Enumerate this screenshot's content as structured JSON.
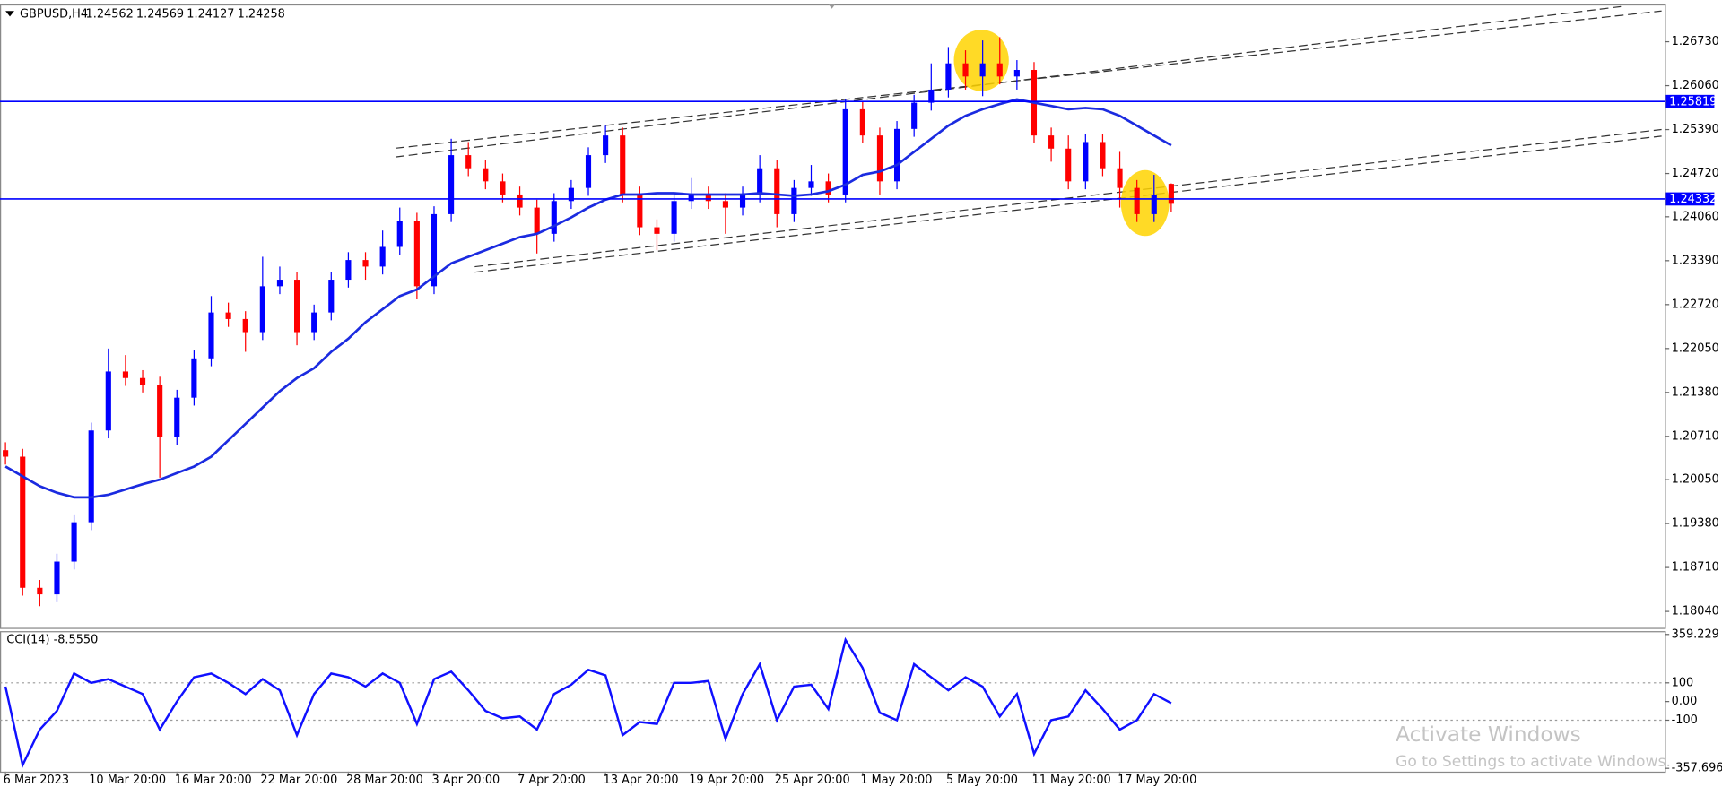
{
  "chart_data": [
    {
      "type": "candlestick",
      "title": "GBPUSD,H4",
      "categories": [
        "6 Mar 2023",
        null,
        null,
        null,
        null,
        "10 Mar 20:00",
        null,
        null,
        null,
        null,
        "16 Mar 20:00",
        null,
        null,
        null,
        null,
        "22 Mar 20:00",
        null,
        null,
        null,
        null,
        "28 Mar 20:00",
        null,
        null,
        null,
        null,
        "3 Apr 20:00",
        null,
        null,
        null,
        null,
        "7 Apr 20:00",
        null,
        null,
        null,
        null,
        "13 Apr 20:00",
        null,
        null,
        null,
        null,
        "19 Apr 20:00",
        null,
        null,
        null,
        null,
        "25 Apr 20:00",
        null,
        null,
        null,
        null,
        "1 May 20:00",
        null,
        null,
        null,
        null,
        "5 May 20:00",
        null,
        null,
        null,
        null,
        "11 May 20:00",
        null,
        null,
        null,
        null,
        "17 May 20:00",
        null,
        null,
        null
      ],
      "open": [
        1.205,
        1.204,
        1.184,
        1.183,
        1.188,
        1.194,
        1.208,
        1.217,
        1.216,
        1.215,
        1.207,
        1.213,
        1.219,
        1.226,
        1.225,
        1.223,
        1.23,
        1.231,
        1.223,
        1.226,
        1.231,
        1.234,
        1.233,
        1.236,
        1.24,
        1.23,
        1.241,
        1.25,
        1.248,
        1.246,
        1.244,
        1.242,
        1.238,
        1.243,
        1.245,
        1.25,
        1.253,
        1.244,
        1.239,
        1.238,
        1.243,
        1.244,
        1.243,
        1.242,
        1.244,
        1.248,
        1.241,
        1.245,
        1.246,
        1.244,
        1.257,
        1.253,
        1.246,
        1.254,
        1.258,
        1.26,
        1.264,
        1.262,
        1.264,
        1.262,
        1.263,
        1.253,
        1.251,
        1.246,
        1.252,
        1.248,
        1.245,
        1.241,
        1.24562
      ],
      "high": [
        1.2062,
        1.2052,
        1.1852,
        1.1892,
        1.1952,
        1.2092,
        1.2205,
        1.2195,
        1.2172,
        1.2162,
        1.2142,
        1.2202,
        1.2285,
        1.2275,
        1.2262,
        1.2345,
        1.233,
        1.2322,
        1.2272,
        1.2322,
        1.2352,
        1.2352,
        1.2385,
        1.242,
        1.2412,
        1.2422,
        1.2525,
        1.252,
        1.2492,
        1.2472,
        1.2452,
        1.2432,
        1.2442,
        1.2462,
        1.2512,
        1.2545,
        1.2542,
        1.2452,
        1.2402,
        1.2442,
        1.2465,
        1.2452,
        1.2442,
        1.2452,
        1.25,
        1.2492,
        1.2462,
        1.2485,
        1.2472,
        1.2585,
        1.2582,
        1.2542,
        1.2552,
        1.2592,
        1.264,
        1.2665,
        1.266,
        1.2675,
        1.268,
        1.2645,
        1.2642,
        1.2542,
        1.253,
        1.2532,
        1.2532,
        1.2505,
        1.2462,
        1.247,
        1.24569
      ],
      "low": [
        1.2028,
        1.1828,
        1.1812,
        1.1818,
        1.1868,
        1.1928,
        1.2068,
        1.2148,
        1.2138,
        1.2008,
        1.2058,
        1.2118,
        1.2178,
        1.2238,
        1.22,
        1.2218,
        1.2288,
        1.221,
        1.2218,
        1.2248,
        1.2298,
        1.231,
        1.2318,
        1.2348,
        1.228,
        1.2288,
        1.2398,
        1.2468,
        1.2448,
        1.2428,
        1.2408,
        1.235,
        1.2368,
        1.2418,
        1.2438,
        1.2488,
        1.2428,
        1.2378,
        1.2355,
        1.2368,
        1.2418,
        1.2418,
        1.238,
        1.2408,
        1.2428,
        1.239,
        1.2398,
        1.2438,
        1.2428,
        1.2428,
        1.2518,
        1.244,
        1.2448,
        1.2528,
        1.2568,
        1.2588,
        1.26,
        1.259,
        1.2608,
        1.26,
        1.2518,
        1.249,
        1.2448,
        1.2448,
        1.2468,
        1.242,
        1.2398,
        1.2398,
        1.24127
      ],
      "close": [
        1.204,
        1.184,
        1.183,
        1.188,
        1.194,
        1.208,
        1.217,
        1.216,
        1.215,
        1.207,
        1.213,
        1.219,
        1.226,
        1.225,
        1.223,
        1.23,
        1.231,
        1.223,
        1.226,
        1.231,
        1.234,
        1.233,
        1.236,
        1.24,
        1.23,
        1.241,
        1.25,
        1.248,
        1.246,
        1.244,
        1.242,
        1.238,
        1.243,
        1.245,
        1.25,
        1.253,
        1.244,
        1.239,
        1.238,
        1.243,
        1.244,
        1.243,
        1.242,
        1.244,
        1.248,
        1.241,
        1.245,
        1.246,
        1.244,
        1.257,
        1.253,
        1.246,
        1.254,
        1.258,
        1.26,
        1.264,
        1.262,
        1.264,
        1.262,
        1.263,
        1.253,
        1.251,
        1.246,
        1.252,
        1.248,
        1.245,
        1.241,
        1.244,
        1.24258
      ],
      "up_color": "#0000ff",
      "down_color": "#ff0000",
      "ma": {
        "color": "#1b2be0",
        "values": [
          1.2025,
          1.201,
          1.1995,
          1.1985,
          1.1978,
          1.1978,
          1.1982,
          1.199,
          1.1998,
          1.2005,
          1.2015,
          1.2025,
          1.204,
          1.2065,
          1.209,
          1.2115,
          1.214,
          1.216,
          1.2175,
          1.22,
          1.222,
          1.2245,
          1.2265,
          1.2285,
          1.2295,
          1.2315,
          1.2335,
          1.2345,
          1.2355,
          1.2365,
          1.2375,
          1.238,
          1.2392,
          1.2405,
          1.242,
          1.2432,
          1.244,
          1.244,
          1.2442,
          1.2442,
          1.244,
          1.244,
          1.244,
          1.244,
          1.2442,
          1.244,
          1.2438,
          1.244,
          1.2445,
          1.2455,
          1.247,
          1.2475,
          1.2485,
          1.2505,
          1.2525,
          1.2545,
          1.256,
          1.257,
          1.2578,
          1.2585,
          1.258,
          1.2575,
          1.257,
          1.2572,
          1.257,
          1.256,
          1.2545,
          1.253,
          1.2515
        ]
      },
      "hlines": [
        1.25819,
        1.24332
      ],
      "hline_color": "#0000ff",
      "ylim": [
        1.17806,
        1.27283
      ],
      "yticks": [
        {
          "value": 1.2673,
          "label": "1.26730"
        },
        {
          "value": 1.2606,
          "label": "1.26060"
        },
        {
          "value": 1.2539,
          "label": "1.25390"
        },
        {
          "value": 1.2472,
          "label": "1.24720"
        },
        {
          "value": 1.2406,
          "label": "1.24060"
        },
        {
          "value": 1.2339,
          "label": "1.23390"
        },
        {
          "value": 1.2272,
          "label": "1.22720"
        },
        {
          "value": 1.2205,
          "label": "1.22050"
        },
        {
          "value": 1.2138,
          "label": "1.21380"
        },
        {
          "value": 1.2071,
          "label": "1.20710"
        },
        {
          "value": 1.2005,
          "label": "1.20050"
        },
        {
          "value": 1.1938,
          "label": "1.19380"
        },
        {
          "value": 1.1871,
          "label": "1.18710"
        },
        {
          "value": 1.1804,
          "label": "1.18040"
        }
      ]
    },
    {
      "type": "line",
      "title": "CCI(14) -8.5550",
      "color": "#1010ff",
      "values": [
        80,
        -340,
        -150,
        -50,
        150,
        100,
        120,
        80,
        40,
        -150,
        0,
        130,
        150,
        100,
        40,
        120,
        60,
        -180,
        40,
        150,
        130,
        80,
        150,
        100,
        -120,
        120,
        160,
        60,
        -50,
        -90,
        -80,
        -150,
        40,
        90,
        170,
        140,
        -180,
        -110,
        -120,
        100,
        100,
        110,
        -200,
        40,
        200,
        -100,
        80,
        90,
        -40,
        330,
        180,
        -60,
        -100,
        200,
        130,
        60,
        130,
        80,
        -80,
        40,
        -280,
        -100,
        -80,
        60,
        -40,
        -150,
        -100,
        40,
        -8.555
      ],
      "ylim": [
        -357.6963,
        359.229
      ],
      "yticks": [
        359.229,
        100,
        {
          "value": 0,
          "label": "0.00"
        },
        -100,
        -357.6963
      ],
      "levels": [
        100,
        -100
      ]
    }
  ],
  "watermark": {
    "title": "Activate Windows",
    "subtitle": "Go to Settings to activate Windows."
  }
}
